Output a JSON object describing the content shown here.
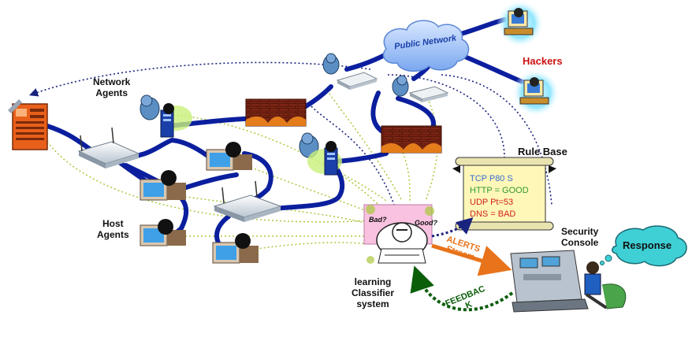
{
  "labels": {
    "network_agents_line1": "Network",
    "network_agents_line2": "Agents",
    "host_agents_line1": "Host",
    "host_agents_line2": "Agents",
    "hackers": "Hackers",
    "public_network": "Public Network",
    "rule_base": "Rule Base",
    "security_console_line1": "Security",
    "security_console_line2": "Console",
    "response": "Response",
    "lcs_line1": "learning",
    "lcs_line2": "Classifier",
    "lcs_line3": "system",
    "bad": "Bad?",
    "good": "Good?",
    "alerts_line1": "ALERTS",
    "alerts_line2": "Stream",
    "feedback_line1": "FEEDBAC",
    "feedback_line2": "K"
  },
  "rules": [
    {
      "text": "TCP P80 S",
      "color": "#3a6ccf"
    },
    {
      "text": "HTTP = GOOD",
      "color": "#2f9a2f"
    },
    {
      "text": "UDP Pt=53",
      "color": "#d02020"
    },
    {
      "text": "DNS = BAD",
      "color": "#d02020"
    }
  ],
  "colors": {
    "cable": "#0b1f9e",
    "dotted_link": "#1a237e",
    "agent_link": "#aac83c",
    "alerts": "#e8731a",
    "feedback": "#0a5e0a",
    "hackers_text": "#cc1111",
    "firewall": "#8b2a1a",
    "cloud": "#a9c8ff"
  }
}
